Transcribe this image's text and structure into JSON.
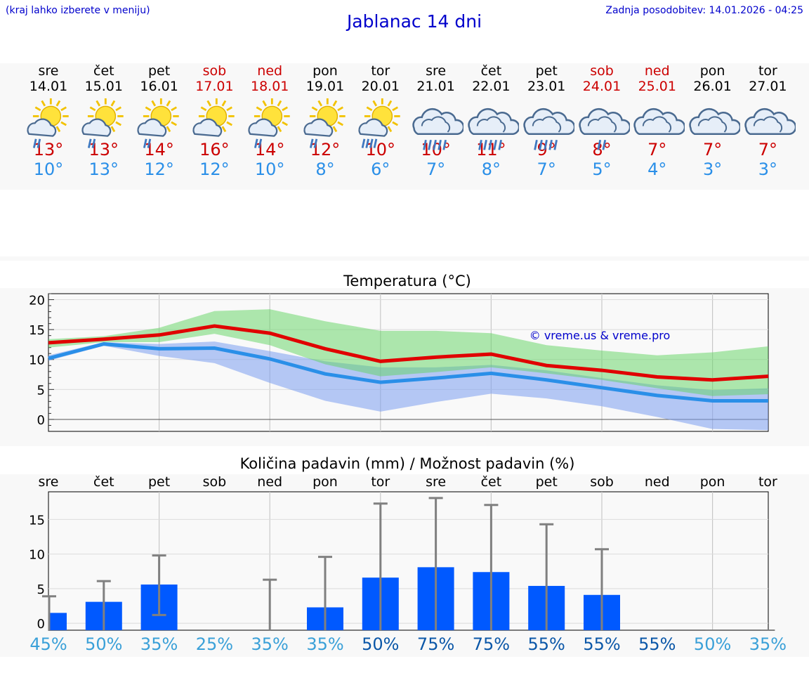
{
  "header": {
    "hint": "(kraj lahko izberete v meniju)",
    "title": "Jablanac 14 dni",
    "updated": "Zadnja posodobitev: 14.01.2026 - 04:25"
  },
  "colors": {
    "max": "#cc0000",
    "min": "#2a8fe8",
    "bar": "#0059ff",
    "pct_light": "#3aa0d8",
    "pct_dark": "#0b57a8"
  },
  "days": [
    {
      "name": "sre",
      "date": "14.01",
      "weekend": false,
      "icon": "sun-cloud-rain-icon",
      "tmax": "13°",
      "tmin": "10°",
      "pct": "45%",
      "pct_dark": false
    },
    {
      "name": "čet",
      "date": "15.01",
      "weekend": false,
      "icon": "sun-cloud-rain-icon",
      "tmax": "13°",
      "tmin": "13°",
      "pct": "50%",
      "pct_dark": false
    },
    {
      "name": "pet",
      "date": "16.01",
      "weekend": false,
      "icon": "sun-cloud-rain-icon",
      "tmax": "14°",
      "tmin": "12°",
      "pct": "35%",
      "pct_dark": false
    },
    {
      "name": "sob",
      "date": "17.01",
      "weekend": true,
      "icon": "sun-cloud-icon",
      "tmax": "16°",
      "tmin": "12°",
      "pct": "25%",
      "pct_dark": false
    },
    {
      "name": "ned",
      "date": "18.01",
      "weekend": true,
      "icon": "sun-cloud-rain-icon",
      "tmax": "14°",
      "tmin": "10°",
      "pct": "35%",
      "pct_dark": false
    },
    {
      "name": "pon",
      "date": "19.01",
      "weekend": false,
      "icon": "sun-cloud-rain-icon",
      "tmax": "12°",
      "tmin": "8°",
      "pct": "35%",
      "pct_dark": false
    },
    {
      "name": "tor",
      "date": "20.01",
      "weekend": false,
      "icon": "sun-cloud-heavy-rain-icon",
      "tmax": "10°",
      "tmin": "6°",
      "pct": "50%",
      "pct_dark": true
    },
    {
      "name": "sre",
      "date": "21.01",
      "weekend": false,
      "icon": "cloud-heavy-rain-icon",
      "tmax": "10°",
      "tmin": "7°",
      "pct": "75%",
      "pct_dark": true
    },
    {
      "name": "čet",
      "date": "22.01",
      "weekend": false,
      "icon": "cloud-heavy-rain-icon",
      "tmax": "11°",
      "tmin": "8°",
      "pct": "75%",
      "pct_dark": true
    },
    {
      "name": "pet",
      "date": "23.01",
      "weekend": false,
      "icon": "cloud-heavy-rain-icon",
      "tmax": "9°",
      "tmin": "7°",
      "pct": "55%",
      "pct_dark": true
    },
    {
      "name": "sob",
      "date": "24.01",
      "weekend": true,
      "icon": "cloud-rain-icon",
      "tmax": "8°",
      "tmin": "5°",
      "pct": "55%",
      "pct_dark": true
    },
    {
      "name": "ned",
      "date": "25.01",
      "weekend": true,
      "icon": "cloud-icon",
      "tmax": "7°",
      "tmin": "4°",
      "pct": "55%",
      "pct_dark": true
    },
    {
      "name": "pon",
      "date": "26.01",
      "weekend": false,
      "icon": "cloud-icon",
      "tmax": "7°",
      "tmin": "3°",
      "pct": "50%",
      "pct_dark": false
    },
    {
      "name": "tor",
      "date": "27.01",
      "weekend": false,
      "icon": "cloud-icon",
      "tmax": "7°",
      "tmin": "3°",
      "pct": "35%",
      "pct_dark": false
    }
  ],
  "chart_data": [
    {
      "type": "line",
      "title": "Temperatura (°C)",
      "watermark": "© vreme.us & vreme.pro",
      "ylim": [
        -2,
        21
      ],
      "yticks": [
        0,
        5,
        10,
        15,
        20
      ],
      "x": [
        0,
        1,
        2,
        3,
        4,
        5,
        6,
        7,
        8,
        9,
        10,
        11,
        12,
        13
      ],
      "series": [
        {
          "name": "max",
          "values": [
            12.8,
            13.4,
            14.1,
            15.6,
            14.4,
            11.8,
            9.7,
            10.4,
            10.9,
            9.0,
            8.2,
            7.1,
            6.6,
            7.2
          ]
        },
        {
          "name": "min",
          "values": [
            10.2,
            12.6,
            11.8,
            11.9,
            10.1,
            7.6,
            6.2,
            6.9,
            7.7,
            6.6,
            5.3,
            4.0,
            3.1,
            3.1
          ]
        }
      ],
      "bands": [
        {
          "name": "max-range",
          "low": [
            12.0,
            12.9,
            12.9,
            14.3,
            12.4,
            9.2,
            7.2,
            7.9,
            8.7,
            7.7,
            6.6,
            5.2,
            3.9,
            4.2
          ],
          "high": [
            13.4,
            13.9,
            15.3,
            18.1,
            18.4,
            16.4,
            14.8,
            14.8,
            14.4,
            12.4,
            11.5,
            10.7,
            11.2,
            12.2
          ]
        },
        {
          "name": "min-range",
          "low": [
            9.8,
            12.3,
            10.6,
            9.4,
            6.1,
            3.1,
            1.3,
            2.9,
            4.3,
            3.5,
            2.2,
            0.4,
            -1.6,
            -1.8
          ],
          "high": [
            10.7,
            12.9,
            12.6,
            13.0,
            11.4,
            9.7,
            8.7,
            8.7,
            9.1,
            8.2,
            6.9,
            5.7,
            4.9,
            5.2
          ]
        }
      ]
    },
    {
      "type": "bar",
      "title": "Količina padavin (mm) / Možnost padavin (%)",
      "ylim": [
        -1,
        19
      ],
      "yticks": [
        0,
        5,
        10,
        15
      ],
      "categories": [
        "sre",
        "čet",
        "pet",
        "sob",
        "ned",
        "pon",
        "tor",
        "sre",
        "čet",
        "pet",
        "sob",
        "ned",
        "pon",
        "tor"
      ],
      "values": [
        1.5,
        3.1,
        5.6,
        0,
        0,
        2.3,
        6.6,
        8.1,
        7.4,
        5.4,
        4.1,
        0,
        0,
        0
      ],
      "error_low": [
        0,
        0,
        1.2,
        0,
        0,
        0,
        0,
        0,
        0,
        0,
        0,
        0,
        0,
        0
      ],
      "error_high": [
        3.9,
        6.1,
        9.8,
        0,
        6.3,
        9.6,
        17.3,
        18.1,
        17.1,
        14.3,
        10.7,
        0,
        0,
        0
      ],
      "percentages": [
        "45%",
        "50%",
        "35%",
        "25%",
        "35%",
        "35%",
        "50%",
        "75%",
        "75%",
        "55%",
        "55%",
        "55%",
        "50%",
        "35%"
      ]
    }
  ]
}
